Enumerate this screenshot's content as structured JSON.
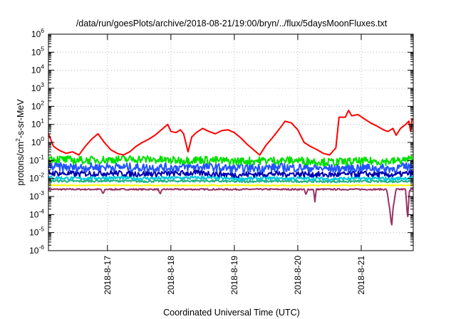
{
  "chart_data": {
    "type": "line",
    "title": "/data/run/goesPlots/archive/2018-08-21/19:00/bryn/../flux/5daysMoonFluxes.txt",
    "xlabel": "Coordinated Universal Time (UTC)",
    "ylabel_parts": [
      "protons/cm",
      "2",
      "-s-sr-MeV"
    ],
    "y_scale": "log",
    "ylim": [
      1e-06,
      1000000.0
    ],
    "y_ticks": [
      {
        "base": "10",
        "exp": "6"
      },
      {
        "base": "10",
        "exp": "5"
      },
      {
        "base": "10",
        "exp": "4"
      },
      {
        "base": "10",
        "exp": "3"
      },
      {
        "base": "10",
        "exp": "2"
      },
      {
        "base": "10",
        "exp": "1"
      },
      {
        "base": "10",
        "exp": "0"
      },
      {
        "base": "10",
        "exp": "-1"
      },
      {
        "base": "10",
        "exp": "-2"
      },
      {
        "base": "10",
        "exp": "-3"
      },
      {
        "base": "10",
        "exp": "-4"
      },
      {
        "base": "10",
        "exp": "-5"
      },
      {
        "base": "10",
        "exp": "-6"
      }
    ],
    "x_unit": "days",
    "xlim": [
      16.07,
      21.82
    ],
    "x_ticks": [
      {
        "x": 17.0,
        "label": "2018-8-17"
      },
      {
        "x": 18.0,
        "label": "2018-8-18"
      },
      {
        "x": 19.0,
        "label": "2018-8-19"
      },
      {
        "x": 20.0,
        "label": "2018-8-20"
      },
      {
        "x": 21.0,
        "label": "2018-8-21"
      }
    ],
    "grid": true,
    "series": [
      {
        "color": "#ff0000",
        "points": [
          [
            16.07,
            3.0
          ],
          [
            16.15,
            0.6
          ],
          [
            16.25,
            0.35
          ],
          [
            16.35,
            0.25
          ],
          [
            16.45,
            0.3
          ],
          [
            16.55,
            0.2
          ],
          [
            16.65,
            0.6
          ],
          [
            16.75,
            1.5
          ],
          [
            16.85,
            3.0
          ],
          [
            16.95,
            1.0
          ],
          [
            17.05,
            0.4
          ],
          [
            17.15,
            0.25
          ],
          [
            17.25,
            0.2
          ],
          [
            17.35,
            0.3
          ],
          [
            17.45,
            0.6
          ],
          [
            17.55,
            1.0
          ],
          [
            17.65,
            1.5
          ],
          [
            17.75,
            2.5
          ],
          [
            17.85,
            5.0
          ],
          [
            17.95,
            10.0
          ],
          [
            18.0,
            4.0
          ],
          [
            18.08,
            3.5
          ],
          [
            18.15,
            5.0
          ],
          [
            18.2,
            3.0
          ],
          [
            18.27,
            0.3
          ],
          [
            18.33,
            2.0
          ],
          [
            18.4,
            3.5
          ],
          [
            18.5,
            6.0
          ],
          [
            18.6,
            4.0
          ],
          [
            18.7,
            3.0
          ],
          [
            18.8,
            4.5
          ],
          [
            18.9,
            5.0
          ],
          [
            19.0,
            3.5
          ],
          [
            19.1,
            1.8
          ],
          [
            19.2,
            0.8
          ],
          [
            19.3,
            0.4
          ],
          [
            19.4,
            0.2
          ],
          [
            19.5,
            0.7
          ],
          [
            19.6,
            1.8
          ],
          [
            19.7,
            5.0
          ],
          [
            19.8,
            15.0
          ],
          [
            19.9,
            12.0
          ],
          [
            20.0,
            5.0
          ],
          [
            20.1,
            1.0
          ],
          [
            20.2,
            0.6
          ],
          [
            20.3,
            0.4
          ],
          [
            20.4,
            0.25
          ],
          [
            20.5,
            0.2
          ],
          [
            20.6,
            0.5
          ],
          [
            20.65,
            25.0
          ],
          [
            20.75,
            25.0
          ],
          [
            20.8,
            60.0
          ],
          [
            20.85,
            30.0
          ],
          [
            20.95,
            35.0
          ],
          [
            21.05,
            20.0
          ],
          [
            21.15,
            12.0
          ],
          [
            21.25,
            8.0
          ],
          [
            21.35,
            5.0
          ],
          [
            21.42,
            4.0
          ],
          [
            21.5,
            6.0
          ],
          [
            21.55,
            2.5
          ],
          [
            21.62,
            6.0
          ],
          [
            21.7,
            10.0
          ],
          [
            21.75,
            15.0
          ],
          [
            21.78,
            4.0
          ],
          [
            21.8,
            20.0
          ],
          [
            21.82,
            18.0
          ]
        ]
      },
      {
        "color": "#00e000",
        "points": [
          [
            16.07,
            0.13
          ],
          [
            16.5,
            0.1
          ],
          [
            17.0,
            0.11
          ],
          [
            17.5,
            0.12
          ],
          [
            18.0,
            0.1
          ],
          [
            18.5,
            0.11
          ],
          [
            19.0,
            0.09
          ],
          [
            19.5,
            0.1
          ],
          [
            20.0,
            0.1
          ],
          [
            20.5,
            0.08
          ],
          [
            21.0,
            0.09
          ],
          [
            21.5,
            0.09
          ],
          [
            21.82,
            0.12
          ]
        ],
        "noise": 0.22
      },
      {
        "color": "#2255ff",
        "points": [
          [
            16.07,
            0.045
          ],
          [
            16.5,
            0.04
          ],
          [
            17.0,
            0.045
          ],
          [
            17.5,
            0.04
          ],
          [
            18.0,
            0.04
          ],
          [
            18.5,
            0.045
          ],
          [
            19.0,
            0.035
          ],
          [
            19.5,
            0.04
          ],
          [
            20.0,
            0.04
          ],
          [
            20.5,
            0.035
          ],
          [
            21.0,
            0.04
          ],
          [
            21.5,
            0.035
          ],
          [
            21.82,
            0.05
          ]
        ],
        "noise": 0.24
      },
      {
        "color": "#0000b0",
        "points": [
          [
            16.07,
            0.02
          ],
          [
            16.5,
            0.018
          ],
          [
            17.0,
            0.02
          ],
          [
            17.5,
            0.018
          ],
          [
            18.0,
            0.019
          ],
          [
            18.5,
            0.02
          ],
          [
            19.0,
            0.016
          ],
          [
            19.5,
            0.018
          ],
          [
            20.0,
            0.018
          ],
          [
            20.5,
            0.016
          ],
          [
            21.0,
            0.018
          ],
          [
            21.5,
            0.016
          ],
          [
            21.82,
            0.02
          ]
        ],
        "noise": 0.16
      },
      {
        "color": "#00c8e0",
        "points": [
          [
            16.07,
            0.011
          ],
          [
            16.5,
            0.01
          ],
          [
            17.0,
            0.011
          ],
          [
            17.5,
            0.01
          ],
          [
            18.0,
            0.0105
          ],
          [
            18.5,
            0.011
          ],
          [
            19.0,
            0.0095
          ],
          [
            19.5,
            0.01
          ],
          [
            20.0,
            0.01
          ],
          [
            20.5,
            0.0095
          ],
          [
            21.0,
            0.01
          ],
          [
            21.5,
            0.0095
          ],
          [
            21.82,
            0.011
          ]
        ],
        "noise": 0.1
      },
      {
        "color": "#20b080",
        "points": [
          [
            16.07,
            0.0075
          ],
          [
            16.5,
            0.007
          ],
          [
            17.0,
            0.0075
          ],
          [
            17.5,
            0.007
          ],
          [
            18.0,
            0.0072
          ],
          [
            18.5,
            0.0074
          ],
          [
            19.0,
            0.0068
          ],
          [
            19.5,
            0.007
          ],
          [
            20.0,
            0.007
          ],
          [
            20.5,
            0.0068
          ],
          [
            21.0,
            0.007
          ],
          [
            21.5,
            0.0068
          ],
          [
            21.82,
            0.0075
          ]
        ],
        "noise": 0.06
      },
      {
        "color": "#ffff00",
        "points": [
          [
            16.07,
            0.0042
          ],
          [
            17.0,
            0.0042
          ],
          [
            18.0,
            0.0041
          ],
          [
            19.0,
            0.0042
          ],
          [
            20.0,
            0.0041
          ],
          [
            21.0,
            0.0042
          ],
          [
            21.82,
            0.0042
          ]
        ],
        "noise": 0.02
      },
      {
        "color": "#993366",
        "points": [
          [
            16.07,
            0.0025
          ],
          [
            16.9,
            0.0025
          ],
          [
            16.93,
            0.0013
          ],
          [
            16.96,
            0.0025
          ],
          [
            17.8,
            0.0025
          ],
          [
            17.83,
            0.0012
          ],
          [
            17.86,
            0.0025
          ],
          [
            20.1,
            0.0025
          ],
          [
            20.13,
            0.0012
          ],
          [
            20.16,
            0.0025
          ],
          [
            20.25,
            0.0025
          ],
          [
            20.27,
            0.0005
          ],
          [
            20.29,
            0.0025
          ],
          [
            21.3,
            0.0025
          ],
          [
            21.4,
            0.0025
          ],
          [
            21.45,
            0.0002
          ],
          [
            21.48,
            2e-05
          ],
          [
            21.5,
            0.0002
          ],
          [
            21.55,
            0.0025
          ],
          [
            21.7,
            0.0025
          ],
          [
            21.73,
            5e-05
          ],
          [
            21.76,
            0.0025
          ],
          [
            21.82,
            0.0025
          ]
        ],
        "noise": 0.04
      }
    ]
  }
}
